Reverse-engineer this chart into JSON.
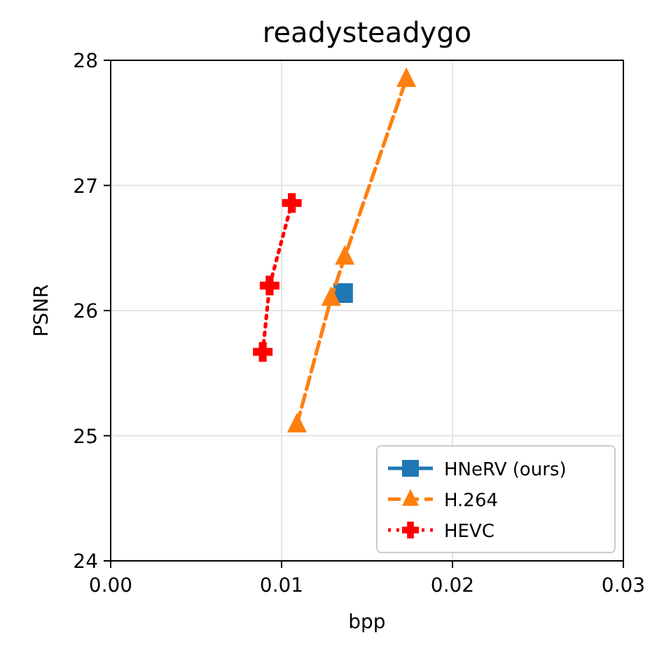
{
  "chart_data": {
    "type": "line",
    "title": "readysteadygo",
    "xlabel": "bpp",
    "ylabel": "PSNR",
    "xlim": [
      0,
      0.03
    ],
    "xticks": [
      {
        "value": 0,
        "label": "0.00"
      },
      {
        "value": 0.01,
        "label": "0.01"
      },
      {
        "value": 0.02,
        "label": "0.02"
      },
      {
        "value": 0.03,
        "label": "0.03"
      }
    ],
    "ylim": [
      24,
      28
    ],
    "yticks": [
      24,
      25,
      26,
      27,
      28
    ],
    "grid": true,
    "legend": "bottom right",
    "series": [
      {
        "name": "HNeRV (ours)",
        "color": "#1f77b4",
        "marker": "square",
        "line_style": "solid",
        "x": [
          0.0136
        ],
        "values": [
          26.14
        ]
      },
      {
        "name": "H.264",
        "color": "#ff7f0e",
        "marker": "triangle",
        "line_style": "dashed",
        "x": [
          0.0109,
          0.0129,
          0.0137,
          0.0173
        ],
        "values": [
          25.09,
          26.1,
          26.43,
          27.85
        ]
      },
      {
        "name": "HEVC",
        "color": "#ff0000",
        "marker": "cross",
        "line_style": "dotted",
        "x": [
          0.0089,
          0.0093,
          0.0106
        ],
        "values": [
          25.67,
          26.2,
          26.86
        ]
      }
    ]
  }
}
